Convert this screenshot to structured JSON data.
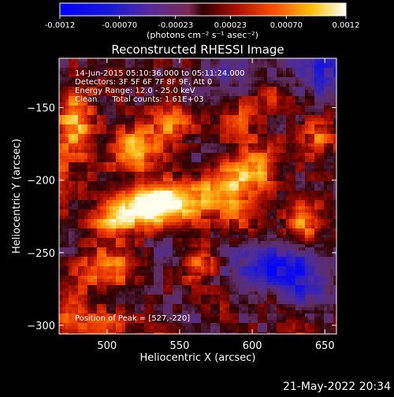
{
  "chart_data": {
    "type": "heatmap",
    "title": "Reconstructed RHESSI Image",
    "xlabel": "Heliocentric X (arcsec)",
    "ylabel": "Heliocentric Y (arcsec)",
    "xlim": [
      467,
      658
    ],
    "ylim": [
      -306,
      -116
    ],
    "xticks": [
      500,
      550,
      600,
      650
    ],
    "yticks": [
      -150,
      -200,
      -250,
      -300
    ],
    "colorbar": {
      "ticks": [
        "-0.0012",
        "-0.00070",
        "-0.00023",
        "0.00023",
        "0.00070",
        "0.0012"
      ],
      "range": [
        -0.0012,
        0.0012
      ],
      "units_label": "(photons cm⁻² s⁻¹ asec⁻²)"
    },
    "annotations": [
      "14-Jun-2015 05:10:36.000 to 05:11:24.000",
      "Detectors: 3F 5F 6F 7F 8F 9F, Att 0",
      "Energy Range: 12.0 - 25.0 keV",
      "Clean      Total counts: 1.61E+03"
    ],
    "peak_label": "Position of Peak = [527,-220]",
    "peak": [
      527,
      -220
    ],
    "sources": [
      {
        "x": 527,
        "y": -218,
        "amp": 0.0012,
        "sx": 14,
        "sy": 9
      },
      {
        "x": 550,
        "y": -213,
        "amp": 0.00095,
        "sx": 18,
        "sy": 10
      },
      {
        "x": 505,
        "y": -228,
        "amp": 0.0007,
        "sx": 12,
        "sy": 9
      },
      {
        "x": 585,
        "y": -203,
        "amp": 0.00085,
        "sx": 12,
        "sy": 12
      },
      {
        "x": 605,
        "y": -190,
        "amp": 0.0007,
        "sx": 10,
        "sy": 12
      },
      {
        "x": 520,
        "y": -178,
        "amp": 0.00095,
        "sx": 12,
        "sy": 10
      },
      {
        "x": 545,
        "y": -162,
        "amp": 0.00065,
        "sx": 10,
        "sy": 9
      },
      {
        "x": 478,
        "y": -160,
        "amp": 0.0009,
        "sx": 9,
        "sy": 16
      },
      {
        "x": 500,
        "y": -260,
        "amp": 0.00075,
        "sx": 14,
        "sy": 10
      },
      {
        "x": 635,
        "y": -230,
        "amp": 0.00085,
        "sx": 9,
        "sy": 10
      },
      {
        "x": 645,
        "y": -170,
        "amp": 0.0006,
        "sx": 8,
        "sy": 9
      },
      {
        "x": 563,
        "y": -258,
        "amp": 0.00075,
        "sx": 9,
        "sy": 8
      },
      {
        "x": 570,
        "y": -290,
        "amp": 0.0005,
        "sx": 10,
        "sy": 9
      },
      {
        "x": 610,
        "y": -280,
        "amp": 0.0004,
        "sx": 10,
        "sy": 8
      },
      {
        "x": 630,
        "y": -300,
        "amp": 0.0004,
        "sx": 10,
        "sy": 8
      },
      {
        "x": 475,
        "y": -290,
        "amp": 0.0005,
        "sx": 9,
        "sy": 12
      },
      {
        "x": 500,
        "y": -300,
        "amp": 0.00055,
        "sx": 12,
        "sy": 7
      },
      {
        "x": 615,
        "y": -140,
        "amp": 0.0004,
        "sx": 12,
        "sy": 8
      },
      {
        "x": 590,
        "y": -158,
        "amp": 0.00045,
        "sx": 8,
        "sy": 9
      },
      {
        "x": 590,
        "y": -230,
        "amp": 0.0004,
        "sx": 10,
        "sy": 8
      },
      {
        "x": 465,
        "y": -200,
        "amp": 0.0005,
        "sx": 8,
        "sy": 14
      },
      {
        "x": 540,
        "y": -300,
        "amp": 0.0004,
        "sx": 10,
        "sy": 8
      }
    ],
    "negative_regions": [
      {
        "x": 650,
        "y": -125,
        "amp": -0.00075,
        "sx": 18,
        "sy": 14
      },
      {
        "x": 610,
        "y": -260,
        "amp": -0.00065,
        "sx": 22,
        "sy": 14
      },
      {
        "x": 630,
        "y": -270,
        "amp": -0.0006,
        "sx": 18,
        "sy": 18
      },
      {
        "x": 560,
        "y": -295,
        "amp": -0.0005,
        "sx": 16,
        "sy": 10
      },
      {
        "x": 585,
        "y": -125,
        "amp": -0.0005,
        "sx": 16,
        "sy": 10
      },
      {
        "x": 565,
        "y": -185,
        "amp": -0.0003,
        "sx": 10,
        "sy": 8
      },
      {
        "x": 540,
        "y": -250,
        "amp": -0.0003,
        "sx": 10,
        "sy": 8
      },
      {
        "x": 470,
        "y": -240,
        "amp": -0.00025,
        "sx": 8,
        "sy": 10
      }
    ]
  },
  "footer": {
    "timestamp": "21-May-2022 20:34"
  }
}
